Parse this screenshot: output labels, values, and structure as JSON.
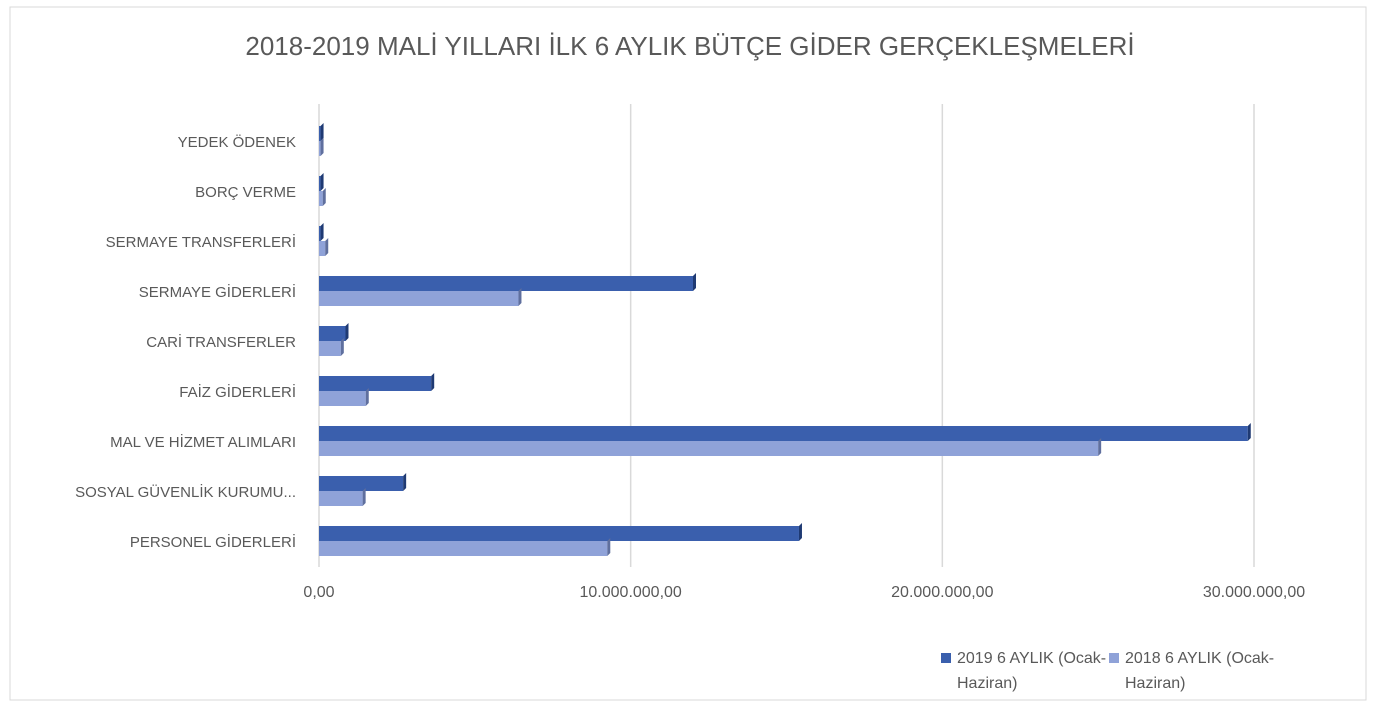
{
  "chart_data": {
    "type": "hbar",
    "title": "2018-2019 MALİ YILLARI İLK 6 AYLIK BÜTÇE GİDER GERÇEKLEŞMELERİ",
    "categories": [
      "PERSONEL GİDERLERİ",
      "SOSYAL GÜVENLİK KURUMU...",
      "MAL VE HİZMET ALIMLARI",
      "FAİZ GİDERLERİ",
      "CARİ TRANSFERLER",
      "SERMAYE GİDERLERİ",
      "SERMAYE TRANSFERLERİ",
      "BORÇ VERME",
      "YEDEK ÖDENEK"
    ],
    "series": [
      {
        "name": "2019 6 AYLIK (Ocak-Haziran)",
        "color": "#3a5fad",
        "values": [
          15400000,
          2700000,
          29800000,
          3600000,
          850000,
          12000000,
          50000,
          50000,
          50000
        ]
      },
      {
        "name": "2018 6 AYLIK (Ocak-Haziran)",
        "color": "#8fa2d8",
        "values": [
          9250000,
          1400000,
          25000000,
          1500000,
          700000,
          6400000,
          200000,
          120000,
          50000
        ]
      }
    ],
    "xlim": [
      0,
      30000000
    ],
    "xticks": [
      {
        "value": 0,
        "label": "0,00"
      },
      {
        "value": 10000000,
        "label": "10.000.000,00"
      },
      {
        "value": 20000000,
        "label": "20.000.000,00"
      },
      {
        "value": 30000000,
        "label": "30.000.000,00"
      }
    ],
    "grid": true,
    "legend": "bottom-right"
  }
}
